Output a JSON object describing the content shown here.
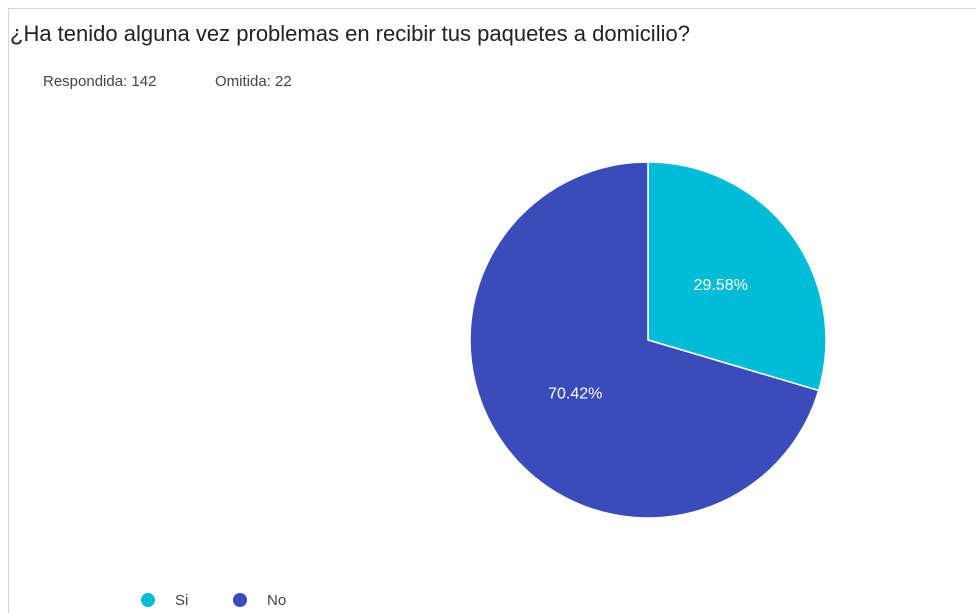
{
  "chart_data": {
    "type": "pie",
    "title": "¿Ha tenido alguna vez problemas en recibir tus paquetes a domicilio?",
    "subtitle": [
      "Respondida: 142",
      "Omitida: 22"
    ],
    "categories": [
      "Si",
      "No"
    ],
    "values": [
      29.58,
      70.42
    ],
    "value_labels": [
      "29.58%",
      "70.42%"
    ],
    "colors": [
      "#00bcd6",
      "#3a4cb9"
    ],
    "legend": "bottom-left"
  }
}
